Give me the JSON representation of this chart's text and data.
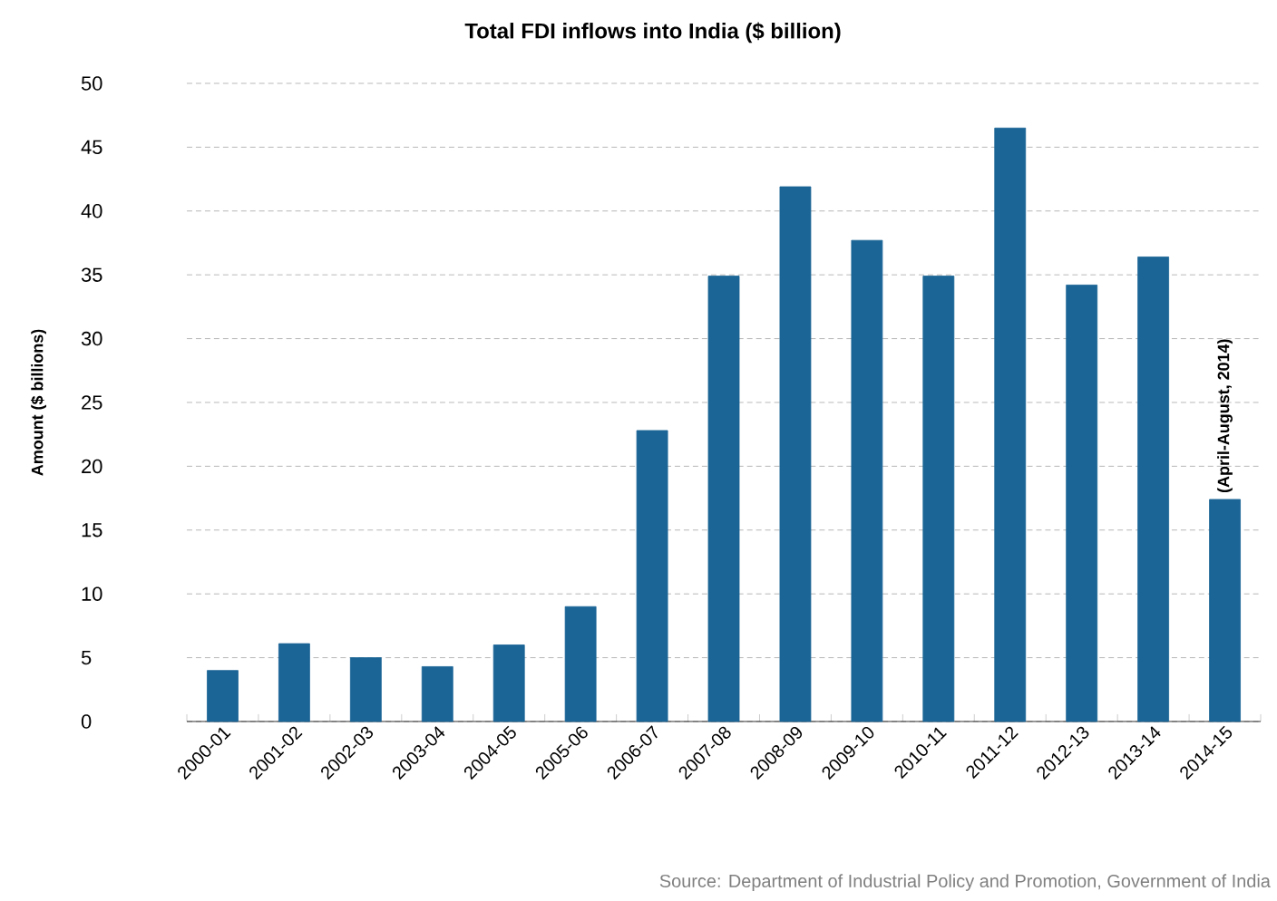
{
  "chart_data": {
    "type": "bar",
    "title": "Total FDI inflows into India ($ billion)",
    "ylabel": "Amount ($ billions)",
    "categories": [
      "2000-01",
      "2001-02",
      "2002-03",
      "2003-04",
      "2004-05",
      "2005-06",
      "2006-07",
      "2007-08",
      "2008-09",
      "2009-10",
      "2010-11",
      "2011-12",
      "2012-13",
      "2013-14",
      "2014-15"
    ],
    "values": [
      4.0,
      6.1,
      5.0,
      4.3,
      6.0,
      9.0,
      22.8,
      34.9,
      41.9,
      37.7,
      34.9,
      46.5,
      34.2,
      36.4,
      17.4
    ],
    "color": "#1a6496",
    "ylim": [
      0,
      50
    ],
    "yticks": [
      0,
      5,
      10,
      15,
      20,
      25,
      30,
      35,
      40,
      45,
      50
    ],
    "grid": "y",
    "annotations": [
      {
        "text": "(April-August, 2014)",
        "x": "2014-15",
        "y": 17.4
      },
      "Source: Department of Industrial Policy and Promotion, Government of India"
    ]
  }
}
